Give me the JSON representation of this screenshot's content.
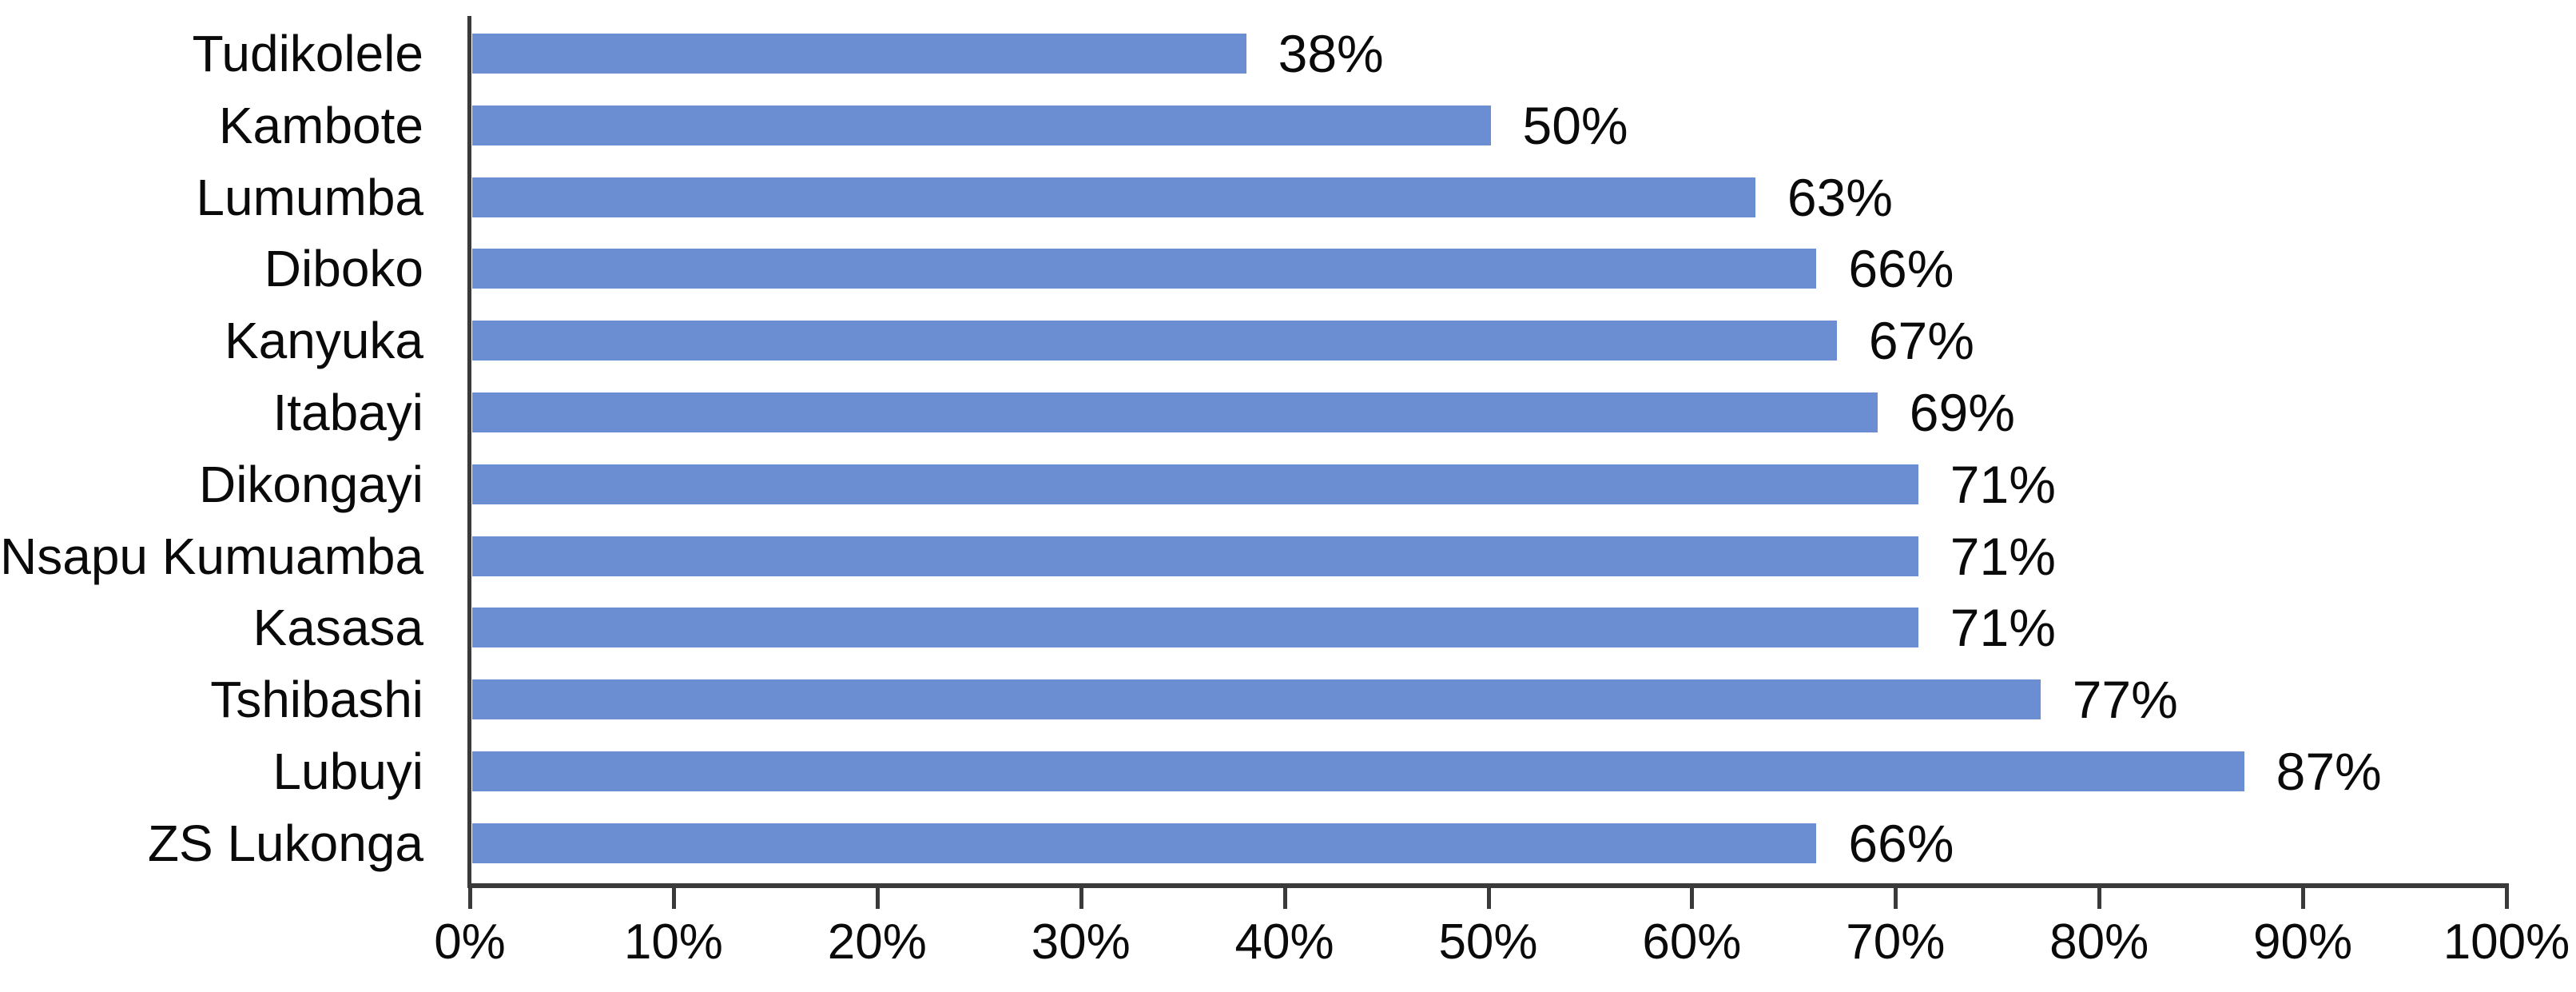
{
  "chart_data": {
    "type": "bar",
    "orientation": "horizontal",
    "title": "",
    "xlabel": "",
    "ylabel": "",
    "categories": [
      "Tudikolele",
      "Kambote",
      "Lumumba",
      "Diboko",
      "Kanyuka",
      "Itabayi",
      "Dikongayi",
      "Nsapu Kumuamba",
      "Kasasa",
      "Tshibashi",
      "Lubuyi",
      "ZS Lukonga"
    ],
    "values": [
      38,
      50,
      63,
      66,
      67,
      69,
      71,
      71,
      71,
      77,
      87,
      66
    ],
    "value_labels": [
      "38%",
      "50%",
      "63%",
      "66%",
      "67%",
      "69%",
      "71%",
      "71%",
      "71%",
      "77%",
      "87%",
      "66%"
    ],
    "x_tick_labels": [
      "0%",
      "10%",
      "20%",
      "30%",
      "40%",
      "50%",
      "60%",
      "70%",
      "80%",
      "90%",
      "100%"
    ],
    "xlim": [
      0,
      100
    ],
    "x_tick_step": 10,
    "grid": false,
    "legend": null,
    "colors": {
      "bar": "#6B8ED3",
      "axis": "#3A3A3A",
      "text": "#0A0A0A",
      "background": "#FFFFFF"
    }
  }
}
